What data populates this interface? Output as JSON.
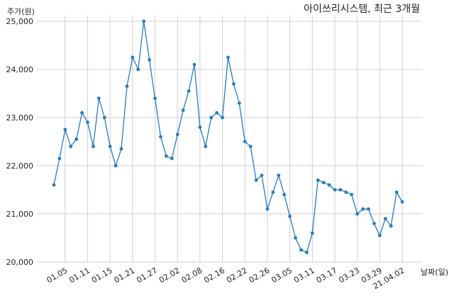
{
  "chart_data": {
    "type": "line",
    "title": "아이쓰리시스템, 최근 3개월",
    "ylabel": "주가(원)",
    "xlabel": "날짜(일)",
    "ylim": [
      20000,
      25000
    ],
    "yticks": [
      20000,
      21000,
      22000,
      23000,
      24000,
      25000
    ],
    "ytick_labels": [
      "20,000",
      "21,000",
      "22,000",
      "23,000",
      "24,000",
      "25,000"
    ],
    "xtick_labels": [
      "01.05",
      "01.11",
      "01.15",
      "01.21",
      "01.27",
      "02.02",
      "02.08",
      "02.16",
      "02.22",
      "02.26",
      "03.05",
      "03.11",
      "03.17",
      "03.23",
      "03.29",
      "21.04.02"
    ],
    "xtick_index": [
      2,
      6,
      10,
      14,
      18,
      22,
      26,
      30,
      34,
      38,
      42,
      46,
      50,
      54,
      58,
      62
    ],
    "grid": true,
    "line_color": "#2b7bb9",
    "series": [
      {
        "values": [
          21600,
          22150,
          22750,
          22400,
          22550,
          23100,
          22900,
          22400,
          23400,
          23000,
          22400,
          22000,
          22350,
          23650,
          24250,
          24000,
          25000,
          24200,
          23400,
          22600,
          22200,
          22150,
          22650,
          23150,
          23550,
          24100,
          22800,
          22400,
          23000,
          23100,
          23000,
          24250,
          23700,
          23300,
          22500,
          22400,
          21700,
          21800,
          21100,
          21450,
          21800,
          21400,
          20950,
          20500,
          20250,
          20200,
          20600,
          21700,
          21650,
          21600,
          21500,
          21500,
          21450,
          21400,
          21000,
          21100,
          21100,
          20800,
          20550,
          20900,
          20750,
          21450,
          21250
        ]
      }
    ]
  }
}
